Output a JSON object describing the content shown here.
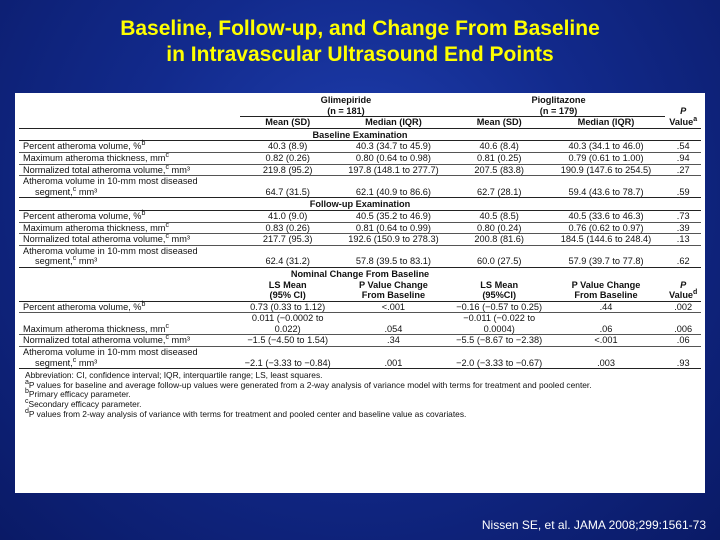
{
  "title": {
    "line1": "Baseline, Follow-up, and Change From Baseline",
    "line2": "in Intravascular Ultrasound End Points"
  },
  "table": {
    "groups": {
      "g1": "Glimepiride",
      "g1_n": "(n = 181)",
      "g2": "Pioglitazone",
      "g2_n": "(n = 179)",
      "p_top": "P",
      "p_bottom": "Value",
      "p_sup": "a"
    },
    "header1": {
      "mean": "Mean (SD)",
      "median": "Median (IQR)"
    },
    "sections": [
      {
        "title": "Baseline Examination",
        "rows": [
          {
            "label": "Percent atheroma volume, %",
            "sup": "b",
            "c1": "40.3 (8.9)",
            "c2": "40.3 (34.7 to 45.9)",
            "c3": "40.6 (8.4)",
            "c4": "40.3 (34.1 to 46.0)",
            "p": ".54"
          },
          {
            "label": "Maximum atheroma thickness, mm",
            "sup": "c",
            "c1": "0.82 (0.26)",
            "c2": "0.80 (0.64 to 0.98)",
            "c3": "0.81 (0.25)",
            "c4": "0.79 (0.61 to 1.00)",
            "p": ".94"
          },
          {
            "label": "Normalized total atheroma volume,",
            "sup": "c",
            "label_tail": " mm³",
            "c1": "219.8 (95.2)",
            "c2": "197.8 (148.1 to 277.7)",
            "c3": "207.5 (83.8)",
            "c4": "190.9 (147.6 to 254.5)",
            "p": ".27"
          },
          {
            "label": "Atheroma volume in 10-mm most diseased",
            "label2": "segment,",
            "sup": "c",
            "label_tail": " mm³",
            "c1": "64.7 (31.5)",
            "c2": "62.1 (40.9 to 86.6)",
            "c3": "62.7 (28.1)",
            "c4": "59.4 (43.6 to 78.7)",
            "p": ".59"
          }
        ]
      },
      {
        "title": "Follow-up Examination",
        "rows": [
          {
            "label": "Percent atheroma volume, %",
            "sup": "b",
            "c1": "41.0 (9.0)",
            "c2": "40.5 (35.2 to 46.9)",
            "c3": "40.5 (8.5)",
            "c4": "40.5 (33.6 to 46.3)",
            "p": ".73"
          },
          {
            "label": "Maximum atheroma thickness, mm",
            "sup": "c",
            "c1": "0.83 (0.26)",
            "c2": "0.81 (0.64 to 0.99)",
            "c3": "0.80 (0.24)",
            "c4": "0.76 (0.62 to 0.97)",
            "p": ".39"
          },
          {
            "label": "Normalized total atheroma volume,",
            "sup": "c",
            "label_tail": " mm³",
            "c1": "217.7 (95.3)",
            "c2": "192.6 (150.9 to 278.3)",
            "c3": "200.8 (81.6)",
            "c4": "184.5 (144.6 to 248.4)",
            "p": ".13"
          },
          {
            "label": "Atheroma volume in 10-mm most diseased",
            "label2": "segment,",
            "sup": "c",
            "label_tail": " mm³",
            "c1": "62.4 (31.2)",
            "c2": "57.8 (39.5 to 83.1)",
            "c3": "60.0 (27.5)",
            "c4": "57.9 (39.7 to 77.8)",
            "p": ".62"
          }
        ]
      },
      {
        "title": "Nominal Change From Baseline",
        "header": {
          "h1a": "LS Mean",
          "h1b": "(95% CI)",
          "h2a": "P Value Change",
          "h2b": "From Baseline",
          "h3a": "LS Mean",
          "h3b": "(95%CI)",
          "h4a": "P Value Change",
          "h4b": "From Baseline",
          "h5a": "P",
          "h5b": "Value",
          "h5sup": "d"
        },
        "rows": [
          {
            "label": "Percent atheroma volume, %",
            "sup": "b",
            "c1": "0.73 (0.33 to 1.12)",
            "c2": "<.001",
            "c3": "−0.16 (−0.57 to 0.25)",
            "c4": ".44",
            "p": ".002"
          },
          {
            "label": "Maximum atheroma thickness, mm",
            "sup": "c",
            "c1": "0.011 (−0.0002 to 0.022)",
            "c2": ".054",
            "c3": "−0.011 (−0.022 to 0.0004)",
            "c4": ".06",
            "p": ".006"
          },
          {
            "label": "Normalized total atheroma volume,",
            "sup": "c",
            "label_tail": " mm³",
            "c1": "−1.5 (−4.50 to 1.54)",
            "c2": ".34",
            "c3": "−5.5 (−8.67 to −2.38)",
            "c4": "<.001",
            "p": ".06"
          },
          {
            "label": "Atheroma volume in 10-mm most diseased",
            "label2": "segment,",
            "sup": "c",
            "label_tail": " mm³",
            "c1": "−2.1 (−3.33 to −0.84)",
            "c2": ".001",
            "c3": "−2.0 (−3.33 to −0.67)",
            "c4": ".003",
            "p": ".93"
          }
        ]
      }
    ],
    "footnotes": [
      {
        "sup": "",
        "text": "Abbreviation: CI, confidence interval; IQR, interquartile range; LS, least squares."
      },
      {
        "sup": "a",
        "text": "P values for baseline and average follow-up values were generated from a 2-way analysis of variance model with terms for treatment and pooled center."
      },
      {
        "sup": "b",
        "text": "Primary efficacy parameter."
      },
      {
        "sup": "c",
        "text": "Secondary efficacy parameter."
      },
      {
        "sup": "d",
        "text": "P values from 2-way analysis of variance with terms for treatment and pooled center and baseline value as covariates."
      }
    ]
  },
  "citation": "Nissen SE, et al. JAMA 2008;299:1561-73"
}
